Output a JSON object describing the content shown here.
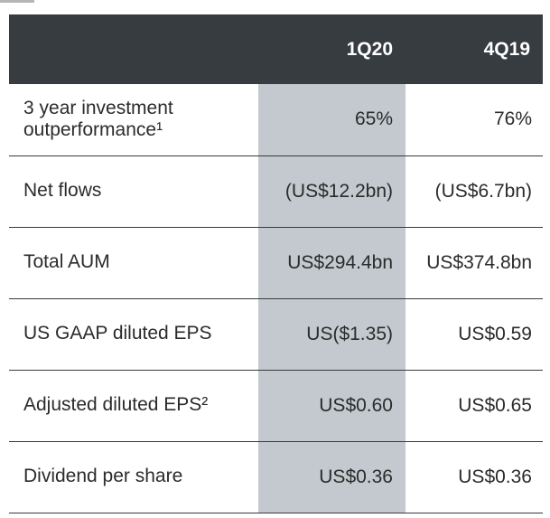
{
  "table": {
    "columns": [
      "",
      "1Q20",
      "4Q19"
    ],
    "rows": [
      {
        "label": "3 year investment outperformance¹",
        "current": "65%",
        "previous": "76%"
      },
      {
        "label": "Net flows",
        "current": "(US$12.2bn)",
        "previous": "(US$6.7bn)"
      },
      {
        "label": "Total AUM",
        "current": "US$294.4bn",
        "previous": "US$374.8bn"
      },
      {
        "label": "US GAAP diluted EPS",
        "current": "US($1.35)",
        "previous": "US$0.59"
      },
      {
        "label": "Adjusted diluted EPS²",
        "current": "US$0.60",
        "previous": "US$0.65"
      },
      {
        "label": "Dividend per share",
        "current": "US$0.36",
        "previous": "US$0.36"
      }
    ]
  },
  "colors": {
    "header_background": "#373c41",
    "highlight_column": "#c3c9ce",
    "row_divider": "#3a3a3a"
  }
}
